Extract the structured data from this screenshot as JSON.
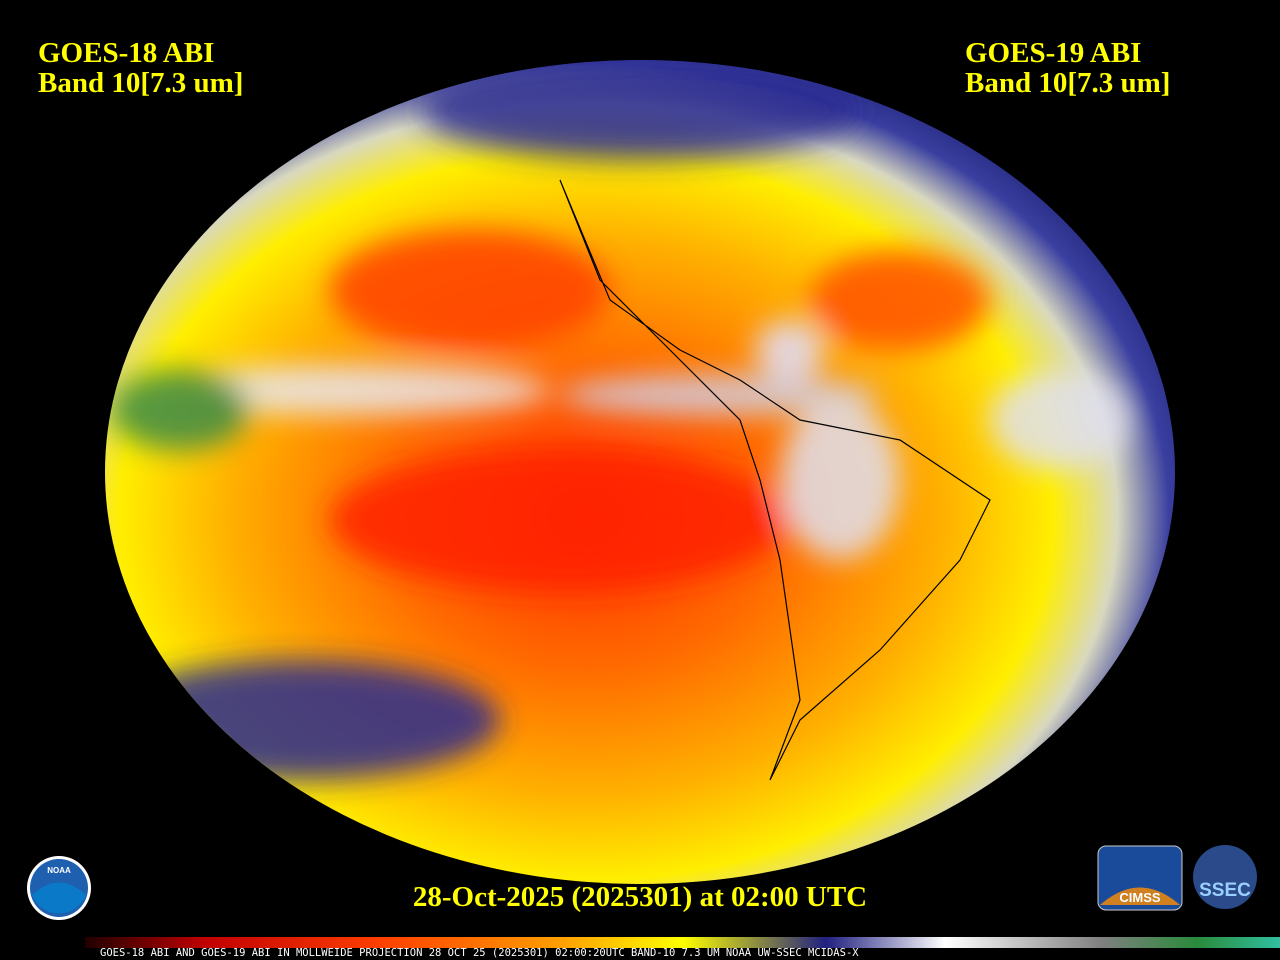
{
  "header": {
    "left": [
      "GOES-18 ABI",
      "Band 10[7.3 um]"
    ],
    "right": [
      "GOES-19 ABI",
      "Band 10[7.3 um]"
    ]
  },
  "timestamp": "28-Oct-2025 (2025301) at 02:00 UTC",
  "footer": "GOES-18 ABI AND GOES-19 ABI IN MOLLWEIDE PROJECTION 28 OCT 25 (2025301) 02:00:20UTC BAND-10 7.3 UM NOAA UW-SSEC MCIDAS-X",
  "logos": {
    "noaa": "NOAA",
    "cimss": "CIMSS",
    "ssec": "SSEC"
  }
}
